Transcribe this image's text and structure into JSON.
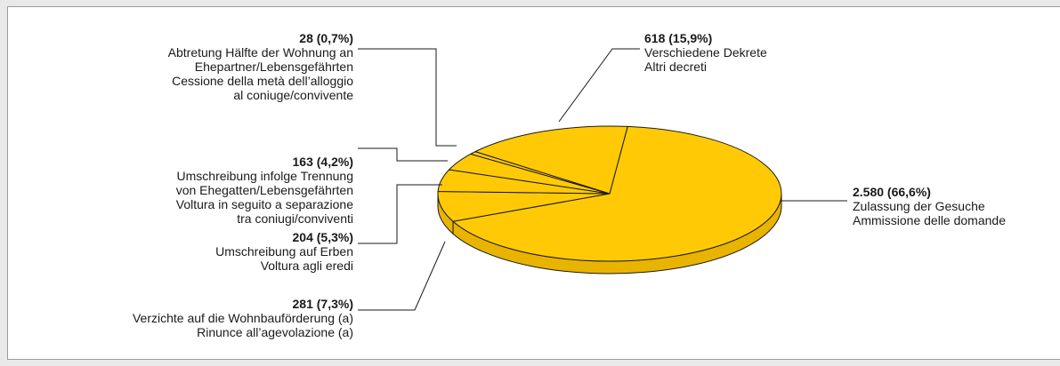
{
  "chart_data": {
    "type": "pie",
    "title": "",
    "colors": {
      "slice_top": "#ffca05",
      "slice_side": "#e8b400",
      "stroke": "#1a1a1a"
    },
    "slices": [
      {
        "value": 2580,
        "value_label": "2.580 (66,6%)",
        "percent": 66.6,
        "label_lines": [
          "Zulassung der Gesuche",
          "Ammissione delle domande"
        ]
      },
      {
        "value": 281,
        "value_label": "281 (7,3%)",
        "percent": 7.3,
        "label_lines": [
          "Verzichte auf die Wohnbauförderung (a)",
          "Rinunce all’agevolazione (a)"
        ]
      },
      {
        "value": 204,
        "value_label": "204 (5,3%)",
        "percent": 5.3,
        "label_lines": [
          "Umschreibung auf Erben",
          "Voltura agli eredi"
        ]
      },
      {
        "value": 163,
        "value_label": "163 (4,2%)",
        "percent": 4.2,
        "label_lines": [
          "Umschreibung infolge Trennung",
          "von Ehegatten/Lebensgefährten",
          "Voltura in seguito a separazione",
          "tra coniugi/conviventi"
        ]
      },
      {
        "value": 28,
        "value_label": "28 (0,7%)",
        "percent": 0.7,
        "label_lines": [
          "Abtretung Hälfte der Wohnung an",
          "Ehepartner/Lebensgefährten",
          "Cessione della metà dell’alloggio",
          "al coniuge/convivente"
        ]
      },
      {
        "value": 618,
        "value_label": "618 (15,9%)",
        "percent": 15.9,
        "label_lines": [
          "Verschiedene Dekrete",
          "Altri decreti"
        ]
      }
    ]
  }
}
